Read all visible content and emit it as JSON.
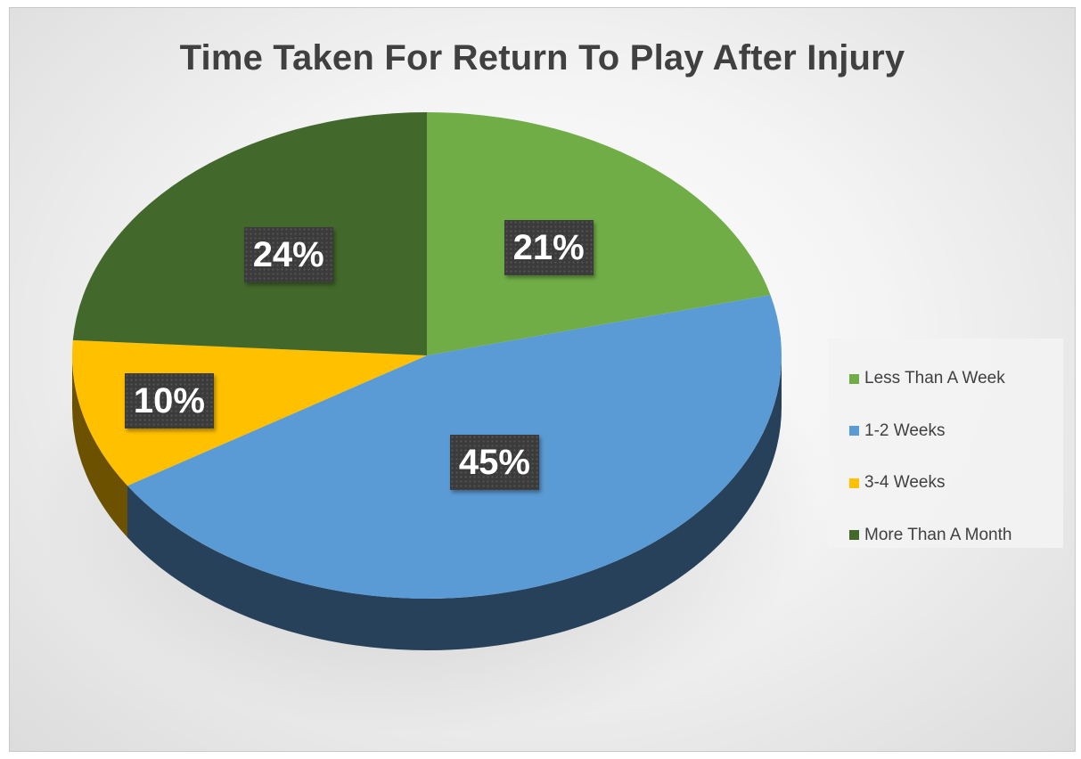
{
  "chart_data": {
    "type": "pie",
    "title": "Time Taken For Return To Play After Injury",
    "categories": [
      "Less Than A Week",
      "1-2 Weeks",
      "3-4 Weeks",
      "More Than A Month"
    ],
    "values": [
      21,
      45,
      10,
      24
    ],
    "value_labels": [
      "21%",
      "45%",
      "10%",
      "24%"
    ],
    "colors": [
      "#70AD47",
      "#5B9BD5",
      "#FFC000",
      "#43682B"
    ],
    "legend_placement": "right",
    "style": "3d"
  }
}
